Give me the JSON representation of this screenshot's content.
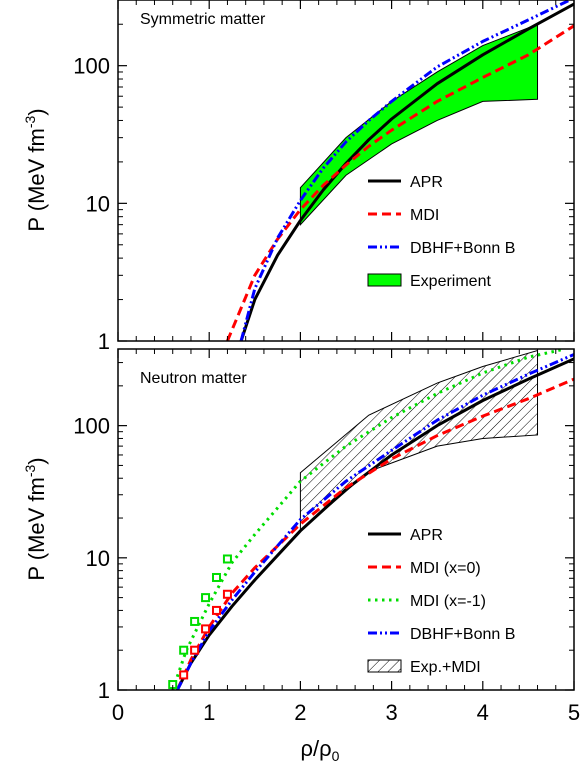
{
  "figure": {
    "xlabel": "ρ/ρ0",
    "xlabel_main": "ρ/ρ",
    "xlabel_sub": "0",
    "ylabel": "P (MeV fm-3)",
    "ylabel_main": "P (MeV fm",
    "ylabel_sup": "-3",
    "ylabel_close": ")",
    "xticks": [
      "0",
      "1",
      "2",
      "3",
      "4",
      "5"
    ],
    "yticks": [
      "1",
      "10",
      "100"
    ]
  },
  "chart_data": [
    {
      "type": "line",
      "title": "Symmetric matter",
      "xlim": [
        0,
        5
      ],
      "ylim": [
        1,
        300
      ],
      "yscale": "log",
      "legend_position": "lower-right",
      "series": [
        {
          "name": "APR",
          "style": "solid",
          "color": "#000000",
          "x": [
            1.35,
            1.5,
            1.75,
            2.0,
            2.25,
            2.5,
            2.75,
            3.0,
            3.5,
            4.0,
            4.5,
            5.0
          ],
          "y": [
            1.0,
            2.0,
            4.2,
            7.5,
            12.5,
            19.5,
            29.0,
            41.0,
            74.0,
            120.0,
            185.0,
            280.0
          ]
        },
        {
          "name": "MDI",
          "style": "dashed",
          "color": "#ff0000",
          "x": [
            1.2,
            1.5,
            1.75,
            2.0,
            2.25,
            2.5,
            2.75,
            3.0,
            3.5,
            4.0,
            4.5,
            5.0
          ],
          "y": [
            1.0,
            3.0,
            5.5,
            9.0,
            13.5,
            19.0,
            26.0,
            34.0,
            55.0,
            82.0,
            120.0,
            195.0
          ]
        },
        {
          "name": "DBHF+Bonn B",
          "style": "dash-dot",
          "color": "#0000ff",
          "x": [
            1.35,
            1.5,
            1.75,
            2.0,
            2.25,
            2.5,
            2.75,
            3.0,
            3.5,
            4.0,
            4.5,
            5.0
          ],
          "y": [
            1.0,
            2.4,
            5.6,
            10.5,
            18.0,
            28.0,
            40.0,
            55.0,
            98.0,
            150.0,
            215.0,
            310.0
          ]
        },
        {
          "name": "Experiment",
          "style": "band",
          "color": "#00ff00",
          "x_upper": [
            2.0,
            2.5,
            3.0,
            3.5,
            4.0,
            4.6
          ],
          "y_upper": [
            13.0,
            30.0,
            55.0,
            90.0,
            140.0,
            200.0
          ],
          "x_lower": [
            2.0,
            2.5,
            3.0,
            3.5,
            4.0,
            4.6
          ],
          "y_lower": [
            7.0,
            16.0,
            27.0,
            40.0,
            55.0,
            57.0
          ]
        }
      ]
    },
    {
      "type": "line",
      "title": "Neutron matter",
      "xlim": [
        0,
        5
      ],
      "ylim": [
        1,
        380
      ],
      "yscale": "log",
      "legend_position": "lower-right",
      "series": [
        {
          "name": "APR",
          "style": "solid",
          "color": "#000000",
          "x": [
            0.65,
            0.8,
            1.0,
            1.25,
            1.5,
            2.0,
            2.5,
            3.0,
            3.5,
            4.0,
            4.5,
            5.0
          ],
          "y": [
            1.0,
            1.6,
            2.6,
            4.3,
            6.8,
            16.0,
            33.0,
            60.0,
            100.0,
            155.0,
            225.0,
            320.0
          ]
        },
        {
          "name": "MDI (x=0)",
          "style": "dashed",
          "color": "#ff0000",
          "x": [
            0.65,
            0.8,
            1.0,
            1.25,
            1.5,
            2.0,
            2.5,
            3.0,
            3.5,
            4.0,
            4.5,
            5.0
          ],
          "y": [
            1.0,
            1.7,
            3.0,
            5.4,
            8.4,
            18.0,
            34.0,
            56.0,
            84.0,
            118.0,
            160.0,
            225.0
          ]
        },
        {
          "name": "MDI (x=-1)",
          "style": "dotted",
          "color": "#00dd00",
          "x": [
            0.6,
            0.75,
            1.0,
            1.25,
            1.5,
            2.0,
            2.5,
            3.0,
            3.5,
            4.0,
            4.5,
            4.9
          ],
          "y": [
            1.0,
            2.0,
            4.5,
            9.2,
            15.0,
            38.0,
            70.0,
            115.0,
            175.0,
            250.0,
            330.0,
            380.0
          ]
        },
        {
          "name": "DBHF+Bonn B",
          "style": "dash-dot",
          "color": "#0000ff",
          "x": [
            0.65,
            0.8,
            1.0,
            1.25,
            1.5,
            2.0,
            2.5,
            3.0,
            3.5,
            4.0,
            4.5,
            5.0
          ],
          "y": [
            1.0,
            1.6,
            2.8,
            4.8,
            7.8,
            19.5,
            38.0,
            65.0,
            110.0,
            170.0,
            245.0,
            345.0
          ]
        },
        {
          "name": "Exp.+MDI",
          "style": "hatched-band",
          "color": "#000000",
          "x_upper": [
            2.0,
            2.75,
            3.5,
            4.0,
            4.6
          ],
          "y_upper": [
            44.0,
            120.0,
            210.0,
            280.0,
            370.0
          ],
          "x_lower": [
            2.0,
            2.75,
            3.5,
            4.0,
            4.6
          ],
          "y_lower": [
            16.0,
            45.0,
            70.0,
            80.0,
            85.0
          ]
        }
      ],
      "markers": [
        {
          "series": "MDI (x=-1)",
          "shape": "open-square",
          "color": "#00dd00",
          "x": [
            0.6,
            0.72,
            0.84,
            0.96,
            1.08,
            1.2
          ],
          "y": [
            1.1,
            2.0,
            3.3,
            5.0,
            7.1,
            9.8
          ]
        },
        {
          "series": "MDI (x=0)",
          "shape": "open-square",
          "color": "#ff0000",
          "x": [
            0.6,
            0.72,
            0.84,
            0.96,
            1.08,
            1.2
          ],
          "y": [
            0.8,
            1.3,
            2.0,
            2.9,
            4.0,
            5.3
          ]
        }
      ]
    }
  ]
}
